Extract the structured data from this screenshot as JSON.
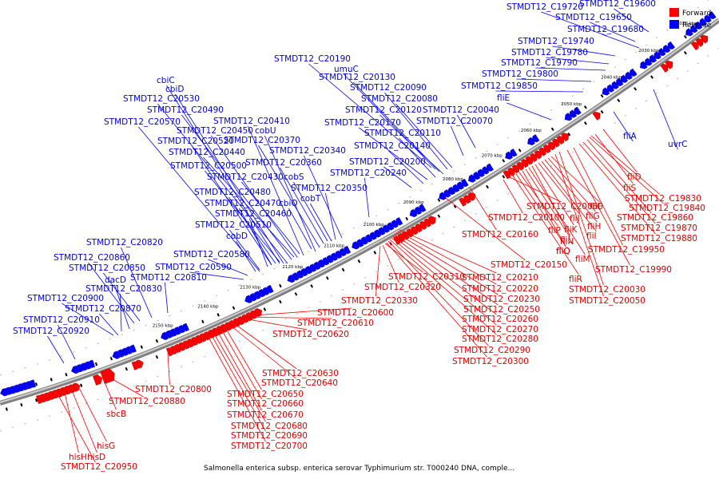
{
  "caption": "Salmonella enterica subsp. enterica serovar Typhimurium str. T000240 DNA, comple...",
  "legend": [
    {
      "label": "Forward",
      "color": "#ff0000"
    },
    {
      "label": "Reverse",
      "color": "#0000ff"
    }
  ],
  "colors": {
    "forward": "#ff0000",
    "reverse": "#0000ff",
    "forward_label": "#e00000",
    "reverse_label": "#0000e0"
  },
  "ticks": [
    "2020 kbp",
    "2030 kbp",
    "2040 kbp",
    "2050 kbp",
    "2060 kbp",
    "2070 kbp",
    "2080 kbp",
    "2090 kbp",
    "2100 kbp",
    "2110 kbp",
    "2120 kbp",
    "2130 kbp",
    "2140 kbp",
    "2150 kbp"
  ],
  "reverse_labels": [
    "STMDT12_C19720",
    "STMDT12_C19600",
    "STMDT12_C19650",
    "STMDT12_C19680",
    "STMDT12_C19740",
    "STMDT12_C19780",
    "STMDT12_C19790",
    "STMDT12_C19800",
    "STMDT12_C19850",
    "fliE",
    "fliA",
    "uvrC",
    "STMDT12_C20190",
    "umuC",
    "STMDT12_C20130",
    "STMDT12_C20090",
    "STMDT12_C20080",
    "STMDT12_C20040",
    "STMDT12_C20120",
    "STMDT12_C20170",
    "STMDT12_C20070",
    "STMDT12_C20110",
    "STMDT12_C20140",
    "STMDT12_C20200",
    "STMDT12_C20240",
    "cbiC",
    "cbiD",
    "STMDT12_C20530",
    "STMDT12_C20490",
    "STMDT12_C20570",
    "STMDT12_C20410",
    "STMDT12_C20450",
    "cobU",
    "STMDT12_C20520",
    "STMDT12_C20370",
    "STMDT12_C20440",
    "STMDT12_C20340",
    "STMDT12_C20500",
    "STMDT12_C20360",
    "STMDT12_C20430",
    "cobS",
    "STMDT12_C20350",
    "STMDT12_C20480",
    "cobT",
    "STMDT12_C20470",
    "cbiO",
    "STMDT12_C20460",
    "STMDT12_C20510",
    "cobD",
    "STMDT12_C20820",
    "STMDT12_C20580",
    "STMDT12_C20860",
    "STMDT12_C20590",
    "STMDT12_C20850",
    "STMDT12_C20810",
    "dacD",
    "STMDT12_C20830",
    "STMDT12_C20900",
    "STMDT12_C20870",
    "STMDT12_C20910",
    "STMDT12_C20920"
  ],
  "forward_labels": [
    "fliD",
    "fliS",
    "STMDT12_C19830",
    "STMDT12_C19840",
    "STMDT12_C19860",
    "STMDT12_C19870",
    "STMDT12_C19880",
    "STMDT12_C19950",
    "STMDT12_C19990",
    "STMDT12_C20030",
    "STMDT12_C20050",
    "fliF",
    "fliG",
    "fliH",
    "fliI",
    "fliJ",
    "fliK",
    "fliL",
    "fliM",
    "fliN",
    "fliO",
    "fliP",
    "fliQ",
    "fliR",
    "STMDT12_C20060",
    "STMDT12_C20100",
    "STMDT12_C20160",
    "STMDT12_C20150",
    "STMDT12_C20210",
    "STMDT12_C20220",
    "STMDT12_C20230",
    "STMDT12_C20250",
    "STMDT12_C20260",
    "STMDT12_C20270",
    "STMDT12_C20280",
    "STMDT12_C20290",
    "STMDT12_C20300",
    "STMDT12_C20310",
    "STMDT12_C20320",
    "STMDT12_C20330",
    "STMDT12_C20600",
    "STMDT12_C20610",
    "STMDT12_C20620",
    "STMDT12_C20630",
    "STMDT12_C20640",
    "STMDT12_C20650",
    "STMDT12_C20660",
    "STMDT12_C20670",
    "STMDT12_C20680",
    "STMDT12_C20690",
    "STMDT12_C20700",
    "STMDT12_C20800",
    "STMDT12_C20880",
    "sbcB",
    "hisG",
    "hisD",
    "hisH",
    "STMDT12_C20950"
  ]
}
